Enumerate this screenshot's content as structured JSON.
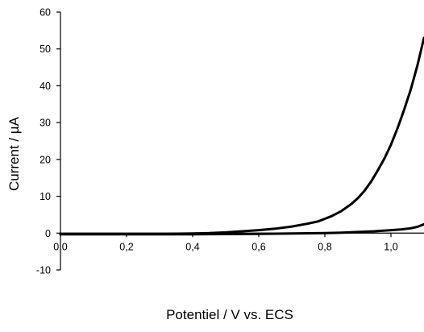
{
  "chart_data": {
    "type": "line",
    "xlabel": "Potentiel / V vs. ECS",
    "ylabel": "Current / µA",
    "xlim": [
      0.0,
      1.1
    ],
    "ylim": [
      -10,
      60
    ],
    "x_ticks": [
      {
        "value": 0.0,
        "label": "0,0"
      },
      {
        "value": 0.2,
        "label": "0,2"
      },
      {
        "value": 0.4,
        "label": "0,4"
      },
      {
        "value": 0.6,
        "label": "0,6"
      },
      {
        "value": 0.8,
        "label": "0,8"
      },
      {
        "value": 1.0,
        "label": "1,0"
      }
    ],
    "y_ticks": [
      {
        "value": -10,
        "label": "-10"
      },
      {
        "value": 0,
        "label": "0"
      },
      {
        "value": 10,
        "label": "10"
      },
      {
        "value": 20,
        "label": "20"
      },
      {
        "value": 30,
        "label": "30"
      },
      {
        "value": 40,
        "label": "40"
      },
      {
        "value": 50,
        "label": "50"
      },
      {
        "value": 60,
        "label": "60"
      }
    ],
    "grid": false,
    "legend": "none",
    "line_color": "#000000",
    "series": [
      {
        "x": [
          0.0,
          0.1,
          0.2,
          0.3,
          0.4,
          0.45,
          0.5,
          0.55,
          0.6,
          0.65,
          0.7,
          0.75,
          0.78,
          0.8,
          0.82,
          0.85,
          0.88,
          0.9,
          0.92,
          0.94,
          0.96,
          0.98,
          1.0,
          1.02,
          1.04,
          1.06,
          1.08,
          1.1
        ],
        "y": [
          -0.2,
          -0.2,
          -0.2,
          -0.2,
          -0.1,
          0.0,
          0.2,
          0.5,
          0.8,
          1.2,
          1.8,
          2.6,
          3.2,
          3.9,
          4.6,
          6.0,
          7.9,
          9.5,
          11.5,
          14.0,
          17.0,
          20.2,
          24.0,
          28.5,
          33.5,
          39.0,
          45.5,
          53.0
        ]
      },
      {
        "x": [
          0.0,
          0.2,
          0.4,
          0.6,
          0.7,
          0.8,
          0.85,
          0.9,
          0.95,
          1.0,
          1.03,
          1.06,
          1.08,
          1.1
        ],
        "y": [
          -0.3,
          -0.3,
          -0.3,
          -0.2,
          -0.1,
          0.0,
          0.1,
          0.3,
          0.5,
          0.8,
          1.0,
          1.3,
          1.7,
          2.4
        ]
      }
    ]
  }
}
